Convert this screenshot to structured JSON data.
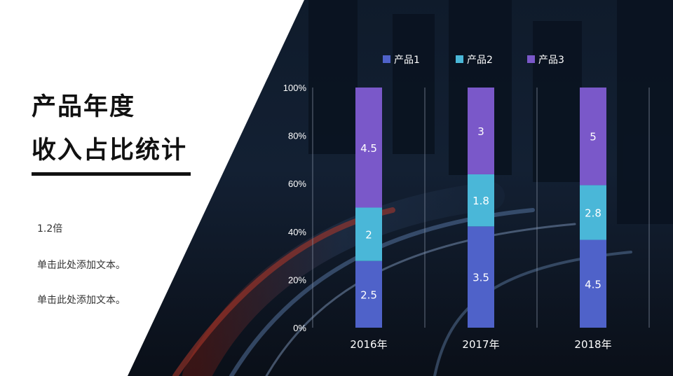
{
  "colors": {
    "product1": "#4f62c9",
    "product2": "#4ab7d8",
    "product3": "#7a58c9",
    "panel": "#ffffff",
    "text_dark": "#111111"
  },
  "left_panel": {
    "title_line1": "产品年度",
    "title_line2": "收入占比统计",
    "paragraphs": [
      "1.2倍",
      "单击此处添加文本。",
      "单击此处添加文本。"
    ]
  },
  "chart_data": {
    "type": "bar",
    "stacked": "percent",
    "categories": [
      "2016年",
      "2017年",
      "2018年"
    ],
    "series": [
      {
        "name": "产品1",
        "values": [
          2.5,
          3.5,
          4.5
        ]
      },
      {
        "name": "产品2",
        "values": [
          2,
          1.8,
          2.8
        ]
      },
      {
        "name": "产品3",
        "values": [
          4.5,
          3,
          5
        ]
      }
    ],
    "y_ticks": [
      "0%",
      "20%",
      "40%",
      "60%",
      "80%",
      "100%"
    ],
    "ylim": [
      0,
      100
    ],
    "legend": "top",
    "grid": true
  }
}
